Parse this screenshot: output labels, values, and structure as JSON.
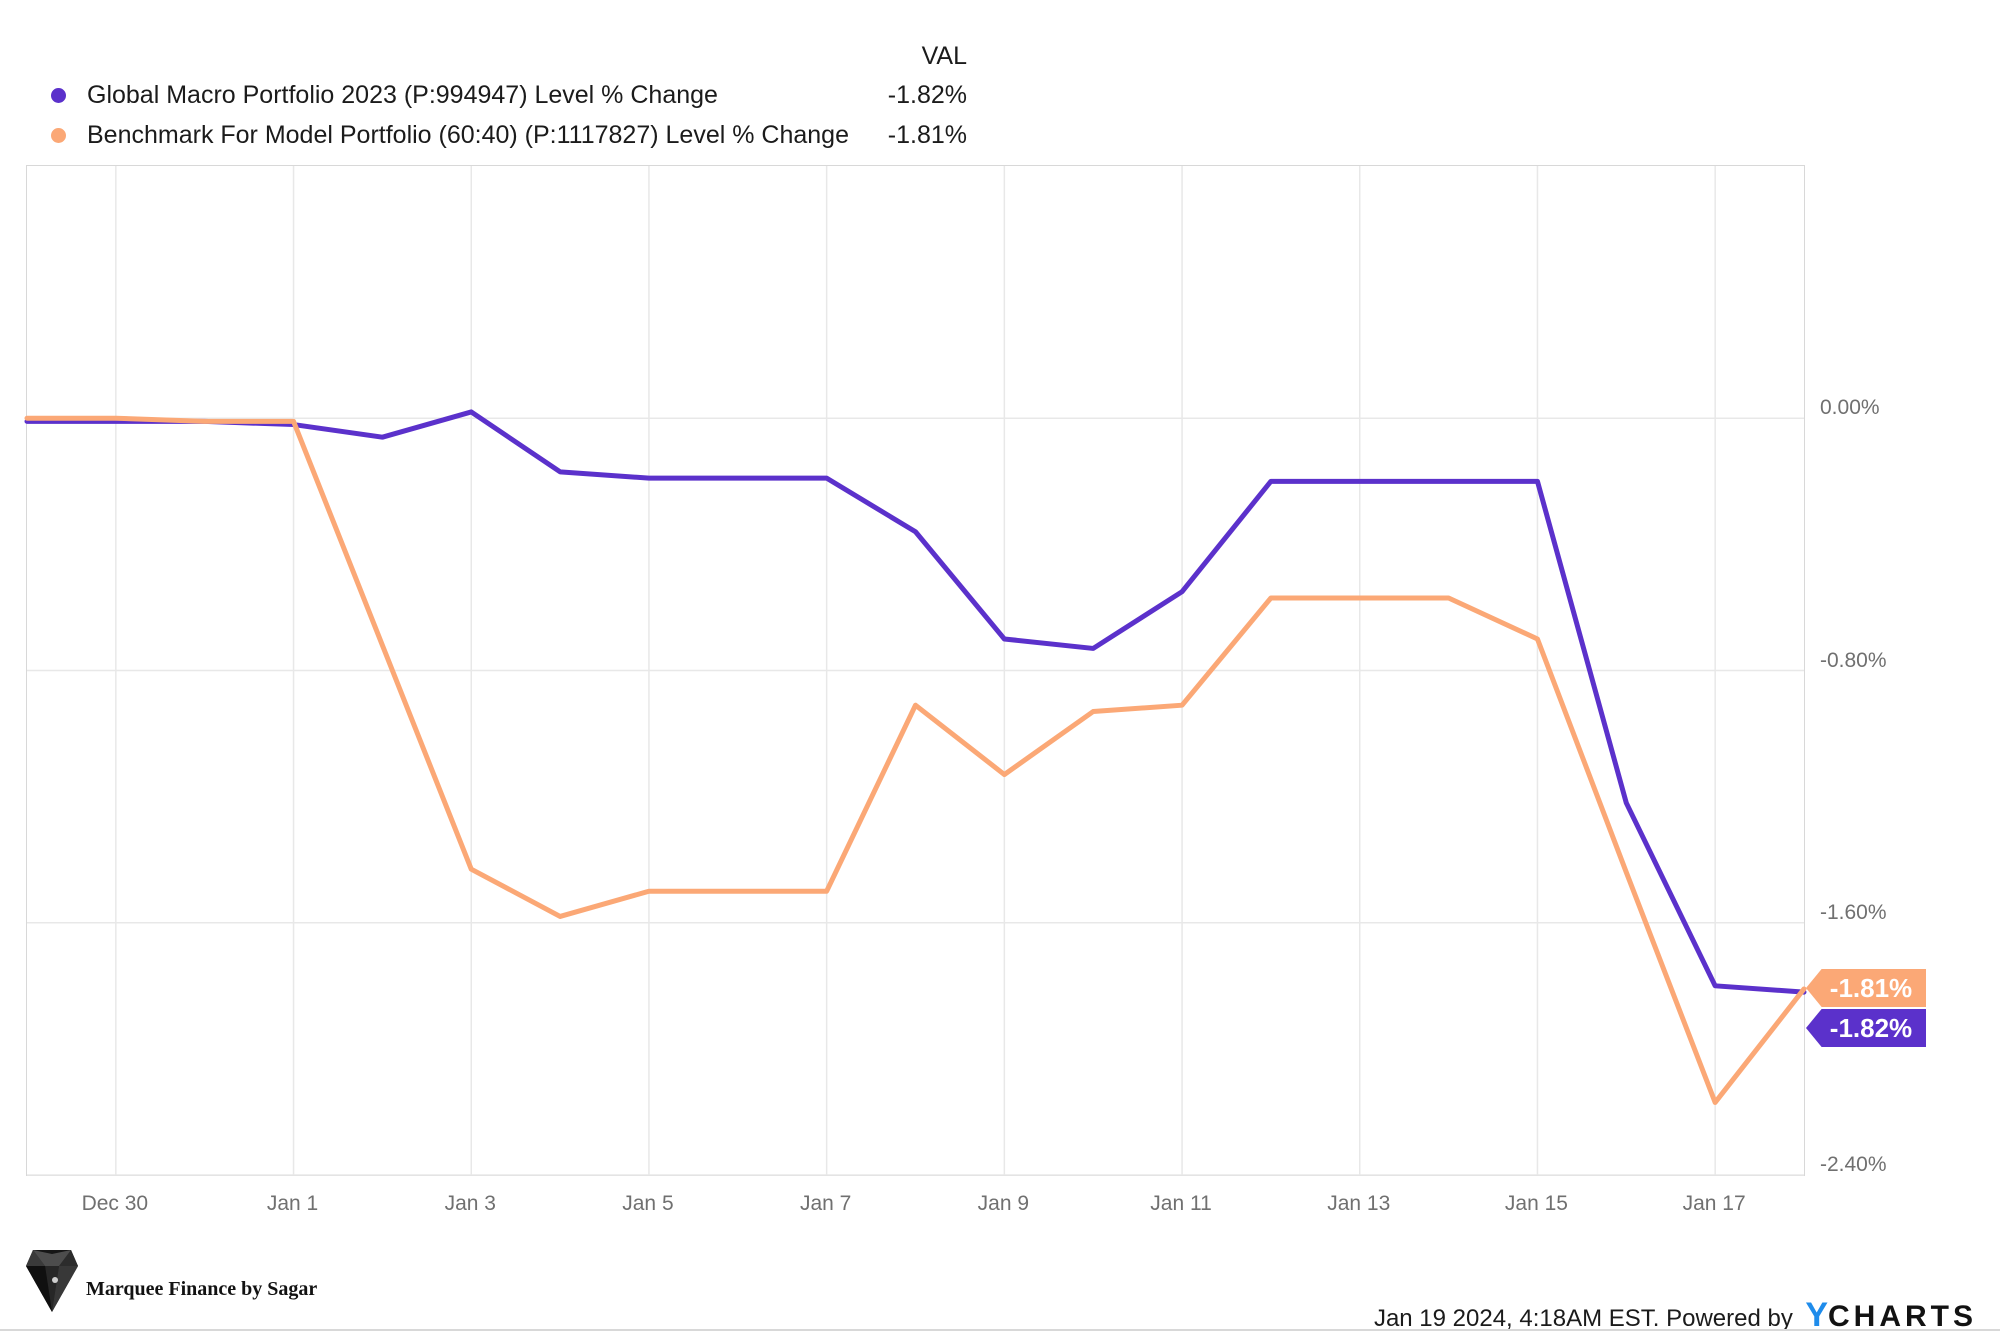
{
  "legend": {
    "val_header": "VAL",
    "rows": [
      {
        "label": "Global Macro Portfolio 2023 (P:994947) Level % Change",
        "value": "-1.82%"
      },
      {
        "label": "Benchmark For Model Portfolio (60:40) (P:1117827) Level % Change",
        "value": "-1.81%"
      }
    ]
  },
  "chart_data": {
    "type": "line",
    "x": [
      "Dec 29",
      "Dec 30",
      "Dec 31",
      "Jan 1",
      "Jan 2",
      "Jan 3",
      "Jan 4",
      "Jan 5",
      "Jan 6",
      "Jan 7",
      "Jan 8",
      "Jan 9",
      "Jan 10",
      "Jan 11",
      "Jan 12",
      "Jan 13",
      "Jan 14",
      "Jan 15",
      "Jan 16",
      "Jan 17",
      "Jan 18"
    ],
    "series": [
      {
        "name": "Global Macro Portfolio 2023 (P:994947) Level % Change",
        "color": "#5b31cb",
        "values": [
          -0.01,
          -0.01,
          -0.01,
          -0.02,
          -0.06,
          0.02,
          -0.17,
          -0.19,
          -0.19,
          -0.19,
          -0.36,
          -0.7,
          -0.73,
          -0.55,
          -0.2,
          -0.2,
          -0.2,
          -0.2,
          -1.22,
          -1.8,
          -1.82
        ],
        "end_label": "-1.82%"
      },
      {
        "name": "Benchmark For Model Portfolio (60:40) (P:1117827) Level % Change",
        "color": "#fba876",
        "values": [
          0.0,
          0.0,
          -0.01,
          -0.01,
          -0.72,
          -1.43,
          -1.58,
          -1.5,
          -1.5,
          -1.5,
          -0.91,
          -1.13,
          -0.93,
          -0.91,
          -0.57,
          -0.57,
          -0.57,
          -0.7,
          -1.44,
          -2.17,
          -1.81
        ],
        "end_label": "-1.81%"
      }
    ],
    "x_ticks": [
      {
        "index": 1,
        "label": "Dec 30"
      },
      {
        "index": 3,
        "label": "Jan 1"
      },
      {
        "index": 5,
        "label": "Jan 3"
      },
      {
        "index": 7,
        "label": "Jan 5"
      },
      {
        "index": 9,
        "label": "Jan 7"
      },
      {
        "index": 11,
        "label": "Jan 9"
      },
      {
        "index": 13,
        "label": "Jan 11"
      },
      {
        "index": 15,
        "label": "Jan 13"
      },
      {
        "index": 17,
        "label": "Jan 15"
      },
      {
        "index": 19,
        "label": "Jan 17"
      }
    ],
    "y_ticks": [
      {
        "value": 0.0,
        "label": "0.00%"
      },
      {
        "value": -0.8,
        "label": "-0.80%"
      },
      {
        "value": -1.6,
        "label": "-1.60%"
      },
      {
        "value": -2.4,
        "label": "-2.40%"
      }
    ],
    "ylim": [
      0.8,
      -2.4
    ],
    "grid": true,
    "legend_position": "top-left",
    "grid_color": "#e8e8e8",
    "line_width": 5
  },
  "footer": {
    "brand_text": "Marquee Finance by Sagar",
    "timestamp": "Jan 19 2024, 4:18AM EST. Powered by",
    "ycharts_y": "Y",
    "ycharts_rest": "CHARTS"
  },
  "colors": {
    "series1": "#5b31cb",
    "series2": "#fba876",
    "grid": "#e8e8e8",
    "plot_border": "#d8d8d8",
    "tick_text": "#707070",
    "text": "#1b1b1b",
    "ycharts_blue": "#1f8ceb"
  }
}
